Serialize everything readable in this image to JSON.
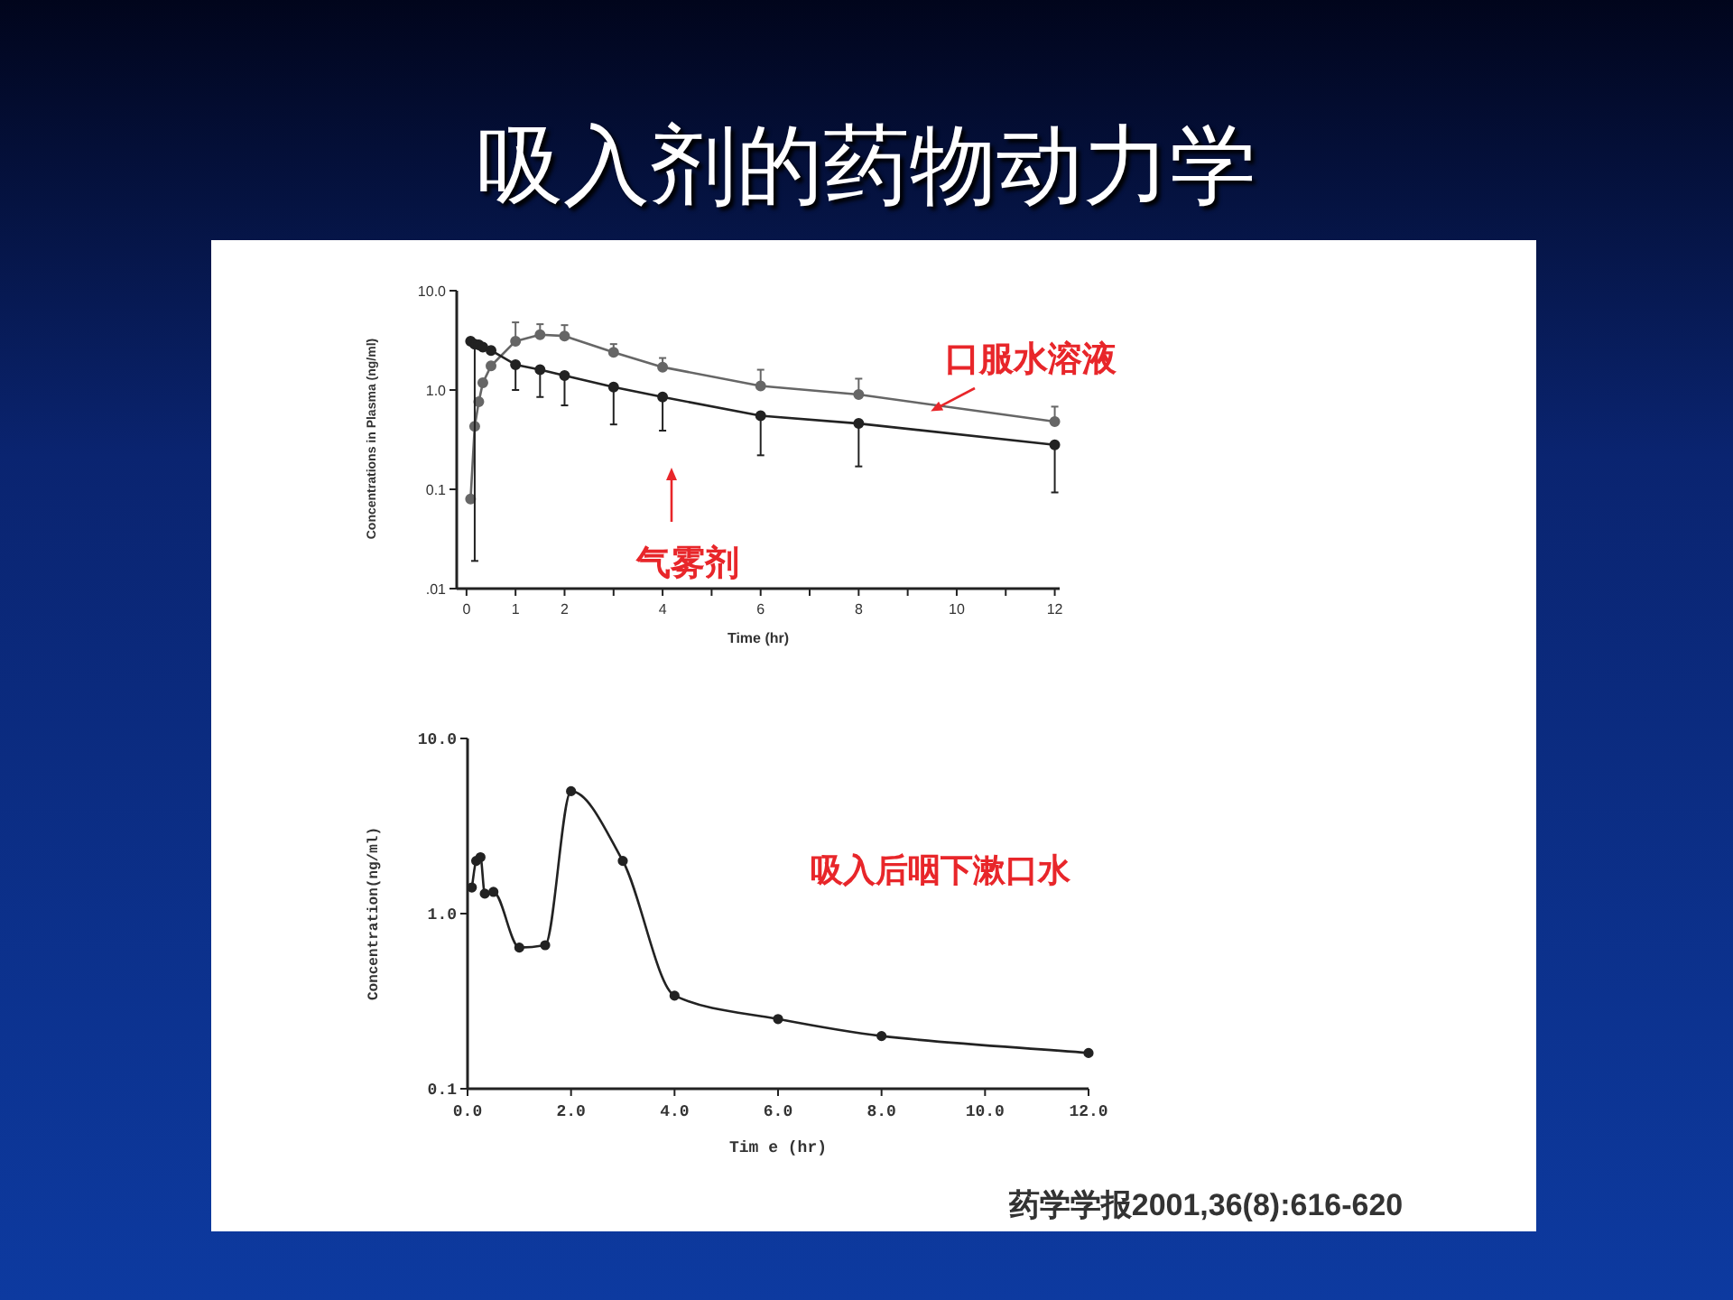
{
  "chart_data": [
    {
      "type": "line",
      "title": "吸入剂的药物动力学",
      "xlabel": "Time (hr)",
      "ylabel": "Concentrations in Plasma (ng/ml)",
      "log": "y",
      "marker": "circle",
      "xlim": [
        -0.2,
        12.1
      ],
      "ylim": [
        0.01,
        10
      ],
      "xticks": [
        0,
        1,
        2,
        {
          "value": 3,
          "label": null
        },
        4,
        {
          "value": 5,
          "label": null
        },
        6,
        {
          "value": 7,
          "label": null
        },
        8,
        {
          "value": 9,
          "label": null
        },
        10,
        {
          "value": 11,
          "label": null
        },
        12
      ],
      "yticks": [
        {
          "value": 0.01,
          "label": ".01"
        },
        {
          "value": 0.1,
          "label": "0.1"
        },
        {
          "value": 1,
          "label": "1.0"
        },
        {
          "value": 10,
          "label": "10.0"
        }
      ],
      "series": [
        {
          "color": "#666666",
          "x": [
            0.083,
            0.167,
            0.25,
            0.333,
            0.5,
            1,
            1.5,
            2,
            3,
            4,
            6,
            8,
            12
          ],
          "values": [
            0.08,
            0.43,
            0.76,
            1.18,
            1.75,
            3.1,
            3.6,
            3.5,
            2.4,
            1.7,
            1.1,
            0.9,
            0.48
          ],
          "errors": [
            null,
            null,
            null,
            null,
            null,
            [
              3.1,
              4.8
            ],
            [
              3.6,
              4.6
            ],
            [
              3.5,
              4.5
            ],
            [
              2.4,
              2.9
            ],
            [
              1.7,
              2.1
            ],
            [
              1.1,
              1.6
            ],
            [
              0.9,
              1.3
            ],
            [
              0.48,
              0.68
            ]
          ]
        },
        {
          "color": "#222222",
          "x": [
            0.083,
            0.167,
            0.25,
            0.333,
            0.5,
            1,
            1.5,
            2,
            3,
            4,
            6,
            8,
            12
          ],
          "values": [
            3.1,
            2.9,
            2.85,
            2.7,
            2.5,
            1.8,
            1.6,
            1.4,
            1.07,
            0.85,
            0.55,
            0.46,
            0.28
          ],
          "errors": [
            null,
            [
              0.019,
              2.9
            ],
            null,
            null,
            null,
            [
              1.0,
              1.8
            ],
            [
              0.85,
              1.6
            ],
            [
              0.7,
              1.4
            ],
            [
              0.45,
              1.07
            ],
            [
              0.39,
              0.85
            ],
            [
              0.22,
              0.55
            ],
            [
              0.17,
              0.46
            ],
            [
              0.093,
              0.28
            ]
          ]
        }
      ],
      "annotations": [
        {
          "text": "口服水溶液",
          "x": 9.47,
          "y": 0.61
        },
        "气雾剂"
      ]
    },
    {
      "type": "line",
      "xlabel": "Tim e (hr)",
      "ylabel": "Concentration(ng/ml)",
      "log": "y",
      "marker": "circle",
      "xlim": [
        0,
        12
      ],
      "ylim": [
        0.1,
        10
      ],
      "xticks": [
        {
          "value": 0,
          "label": "0.0"
        },
        {
          "value": 2,
          "label": "2.0"
        },
        {
          "value": 4,
          "label": "4.0"
        },
        {
          "value": 6,
          "label": "6.0"
        },
        {
          "value": 8,
          "label": "8.0"
        },
        {
          "value": 10,
          "label": "10.0"
        },
        {
          "value": 12,
          "label": "12.0"
        }
      ],
      "yticks": [
        {
          "value": 0.1,
          "label": "0.1"
        },
        {
          "value": 1,
          "label": "1.0"
        },
        {
          "value": 10,
          "label": "10.0"
        }
      ],
      "series": [
        {
          "color": "#222222",
          "x": [
            0.083,
            0.167,
            0.25,
            0.333,
            0.5,
            1,
            1.5,
            2,
            3,
            4,
            6,
            8,
            12
          ],
          "values": [
            1.41,
            2.0,
            2.1,
            1.3,
            1.33,
            0.64,
            0.66,
            5.0,
            2.0,
            0.34,
            0.25,
            0.2,
            0.16
          ]
        }
      ],
      "annotations": [
        "吸入后咽下漱口水",
        "药学学报2001,36(8):616-620"
      ]
    }
  ]
}
